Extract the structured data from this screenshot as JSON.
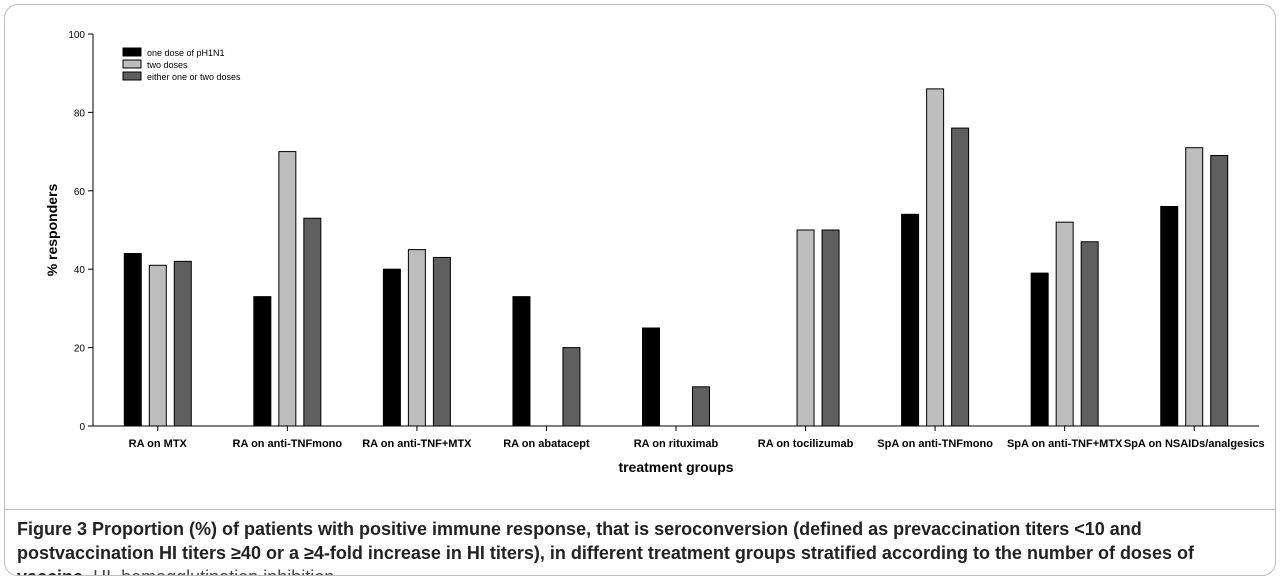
{
  "chart_data": {
    "type": "bar",
    "categories": [
      "RA on MTX",
      "RA on anti-TNFmono",
      "RA on anti-TNF+MTX",
      "RA on abatacept",
      "RA on rituximab",
      "RA on tocilizumab",
      "SpA on anti-TNFmono",
      "SpA on anti-TNF+MTX",
      "SpA on NSAIDs/analgesics"
    ],
    "series": [
      {
        "name": "one dose of pH1N1",
        "color": "#000000",
        "values": [
          44,
          33,
          40,
          33,
          25,
          null,
          54,
          39,
          56
        ]
      },
      {
        "name": "two doses",
        "color": "#bdbdbd",
        "values": [
          41,
          70,
          45,
          null,
          null,
          50,
          86,
          52,
          71
        ]
      },
      {
        "name": "either one or two doses",
        "color": "#5f5f5f",
        "values": [
          42,
          53,
          43,
          20,
          10,
          50,
          76,
          47,
          69
        ]
      }
    ],
    "xlabel": "treatment groups",
    "ylabel": "% responders",
    "ylim": [
      0,
      100
    ],
    "yticks": [
      0,
      20,
      40,
      60,
      80,
      100
    ],
    "grid": false,
    "legend_position": "top-left"
  },
  "caption": {
    "label": "Figure 3",
    "title": "Proportion (%) of patients with positive immune response, that is seroconversion (defined as prevaccination titers <10 and postvaccination HI titers ≥40 or a ≥4-fold increase in HI titers), in different treatment groups stratified according to the number of doses of vaccine.",
    "note": "HI, hemagglutination inhibition."
  }
}
